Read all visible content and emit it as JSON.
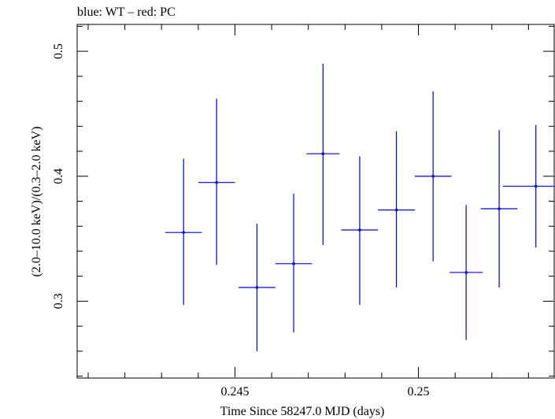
{
  "chart_data": {
    "type": "scatter",
    "title": "blue: WT – red: PC",
    "xlabel": "Time Since 58247.0 MJD (days)",
    "ylabel": "(2.0–10.0 keV)/(0.3–2.0 keV)",
    "xlim": [
      0.2407,
      0.2537
    ],
    "ylim": [
      0.2385,
      0.5215
    ],
    "x_ticks": [
      {
        "value": 0.245,
        "label": "0.245"
      },
      {
        "value": 0.25,
        "label": "0.25"
      }
    ],
    "y_ticks": [
      {
        "value": 0.3,
        "label": "0.3"
      },
      {
        "value": 0.4,
        "label": "0.4"
      },
      {
        "value": 0.5,
        "label": "0.5"
      }
    ],
    "series": [
      {
        "color": "#0000dd",
        "points": [
          {
            "x": 0.2436,
            "y": 0.355,
            "xerr": 0.0005,
            "yerr_low": 0.058,
            "yerr_high": 0.059
          },
          {
            "x": 0.2445,
            "y": 0.395,
            "xerr": 0.0005,
            "yerr_low": 0.066,
            "yerr_high": 0.067
          },
          {
            "x": 0.2456,
            "y": 0.311,
            "xerr": 0.0005,
            "yerr_low": 0.051,
            "yerr_high": 0.051
          },
          {
            "x": 0.2466,
            "y": 0.33,
            "xerr": 0.0005,
            "yerr_low": 0.055,
            "yerr_high": 0.056
          },
          {
            "x": 0.2474,
            "y": 0.418,
            "xerr": 0.00045,
            "yerr_low": 0.073,
            "yerr_high": 0.072
          },
          {
            "x": 0.2484,
            "y": 0.357,
            "xerr": 0.0005,
            "yerr_low": 0.06,
            "yerr_high": 0.059
          },
          {
            "x": 0.2494,
            "y": 0.373,
            "xerr": 0.0005,
            "yerr_low": 0.062,
            "yerr_high": 0.063
          },
          {
            "x": 0.2504,
            "y": 0.4,
            "xerr": 0.0005,
            "yerr_low": 0.068,
            "yerr_high": 0.068
          },
          {
            "x": 0.2513,
            "y": 0.323,
            "xerr": 0.00045,
            "yerr_low": 0.054,
            "yerr_high": 0.054
          },
          {
            "x": 0.2522,
            "y": 0.374,
            "xerr": 0.0005,
            "yerr_low": 0.063,
            "yerr_high": 0.063
          },
          {
            "x": 0.2532,
            "y": 0.392,
            "xerr": 0.0009,
            "yerr_low": 0.049,
            "yerr_high": 0.049
          }
        ]
      }
    ],
    "grid": false
  }
}
